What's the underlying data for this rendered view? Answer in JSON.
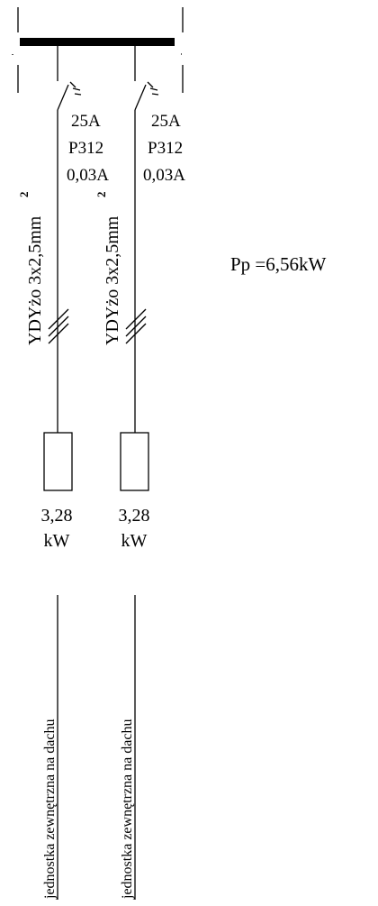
{
  "circuits": [
    {
      "breaker": {
        "rating": "25A",
        "type": "P312",
        "residual": "0,03A"
      },
      "cable": "YDYżo 3x2,5mm",
      "cable_superscript": "2",
      "load": {
        "power": "3,28",
        "unit": "kW"
      },
      "description": "jednostka zewnętrzna na dachu"
    },
    {
      "breaker": {
        "rating": "25A",
        "type": "P312",
        "residual": "0,03A"
      },
      "cable": "YDYżo 3x2,5mm",
      "cable_superscript": "2",
      "load": {
        "power": "3,28",
        "unit": "kW"
      },
      "description": "jednostka zewnętrzna na dachu"
    }
  ],
  "total_power": "Pp  =6,56kW"
}
